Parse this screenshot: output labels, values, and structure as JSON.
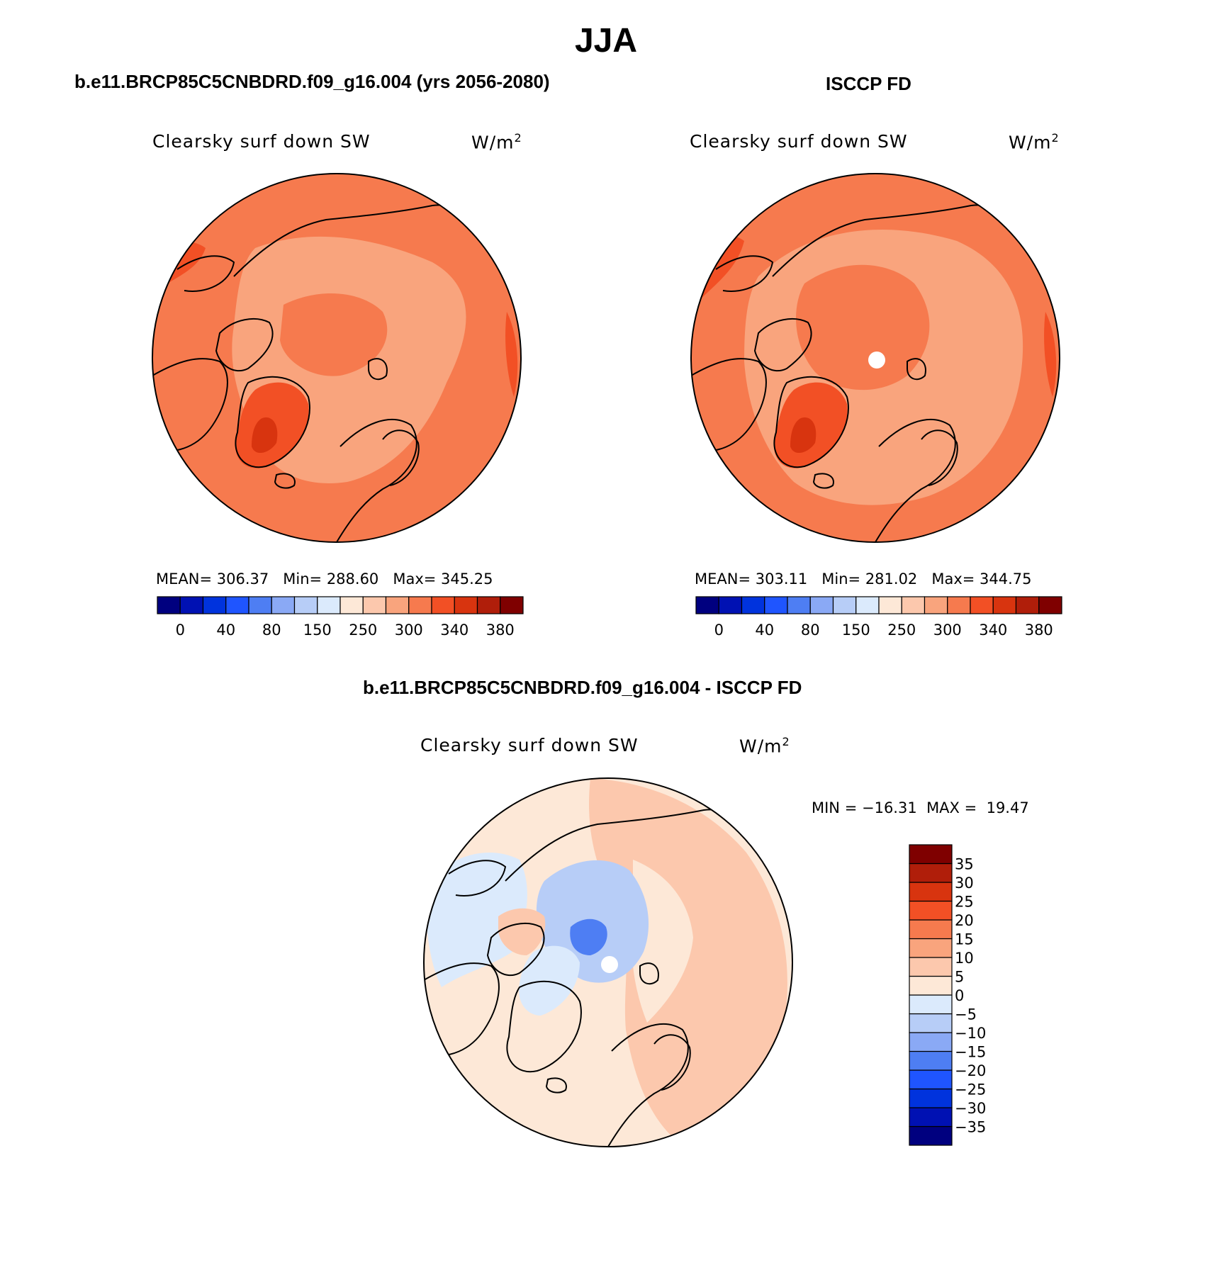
{
  "title": "JJA",
  "panels": [
    {
      "id": "model",
      "case_title": "b.e11.BRCP85C5CNBDRD.f09_g16.004 (yrs 2056-2080)",
      "variable": "Clearsky surf down SW",
      "units_base": "W/m",
      "units_exp": "2",
      "stats": {
        "mean_label": "MEAN=",
        "mean": "306.37",
        "min_label": "Min=",
        "min": "288.60",
        "max_label": "Max=",
        "max": "345.25"
      }
    },
    {
      "id": "obs",
      "case_title": "ISCCP FD",
      "variable": "Clearsky surf down SW",
      "units_base": "W/m",
      "units_exp": "2",
      "stats": {
        "mean_label": "MEAN=",
        "mean": "303.11",
        "min_label": "Min=",
        "min": "281.02",
        "max_label": "Max=",
        "max": "344.75"
      }
    }
  ],
  "diff": {
    "case_title": "b.e11.BRCP85C5CNBDRD.f09_g16.004 - ISCCP FD",
    "variable": "Clearsky surf down SW",
    "units_base": "W/m",
    "units_exp": "2",
    "min_label": "MIN =",
    "min": "−16.31",
    "max_label": "MAX =",
    "max": "19.47"
  },
  "colorbar_abs": {
    "colors": [
      "#00007f",
      "#0011b3",
      "#0033dd",
      "#1f55ff",
      "#4e7ef3",
      "#8aa9f5",
      "#b7cdf7",
      "#dbeafc",
      "#fde8d7",
      "#fcc8ad",
      "#f9a47d",
      "#f67a4e",
      "#f25025",
      "#d8340f",
      "#b01e0a",
      "#7f0000"
    ],
    "labels": [
      "0",
      "40",
      "80",
      "150",
      "250",
      "300",
      "340",
      "380"
    ]
  },
  "colorbar_diff": {
    "colors": [
      "#00007f",
      "#0011b3",
      "#0033dd",
      "#1f55ff",
      "#4e7ef3",
      "#8aa9f5",
      "#b7cdf7",
      "#dbeafc",
      "#fde8d7",
      "#fcc8ad",
      "#f9a47d",
      "#f67a4e",
      "#f25025",
      "#d8340f",
      "#b01e0a",
      "#7f0000"
    ],
    "labels": [
      "35",
      "30",
      "25",
      "20",
      "15",
      "10",
      "5",
      "0",
      "−5",
      "−10",
      "−15",
      "−20",
      "−25",
      "−30",
      "−35"
    ]
  },
  "colors": {
    "abs_background": "#f67a4e",
    "abs_light": "#f9a47d",
    "abs_dark": "#f25025",
    "abs_darker": "#d8340f",
    "diff_background": "#fde8d7",
    "diff_warm": "#fcc8ad",
    "diff_cool": "#dbeafc",
    "diff_cooler": "#b7cdf7",
    "diff_coolest": "#4e7ef3",
    "coastline": "#000000"
  }
}
